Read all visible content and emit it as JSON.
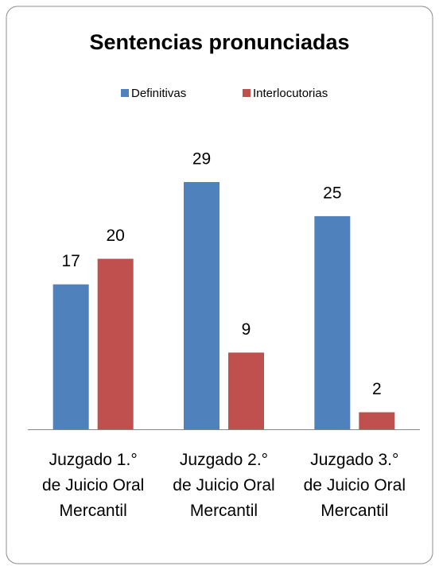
{
  "chart_data": {
    "type": "bar",
    "title": "Sentencias pronunciadas",
    "categories": [
      "Juzgado 1.°\nde Juicio Oral\nMercantil",
      "Juzgado 2.°\nde Juicio Oral\nMercantil",
      "Juzgado 3.°\nde Juicio Oral\nMercantil"
    ],
    "series": [
      {
        "name": "Definitivas",
        "color": "#4f81bd",
        "values": [
          17,
          29,
          25
        ]
      },
      {
        "name": "Interlocutorias",
        "color": "#c0504d",
        "values": [
          20,
          9,
          2
        ]
      }
    ]
  }
}
